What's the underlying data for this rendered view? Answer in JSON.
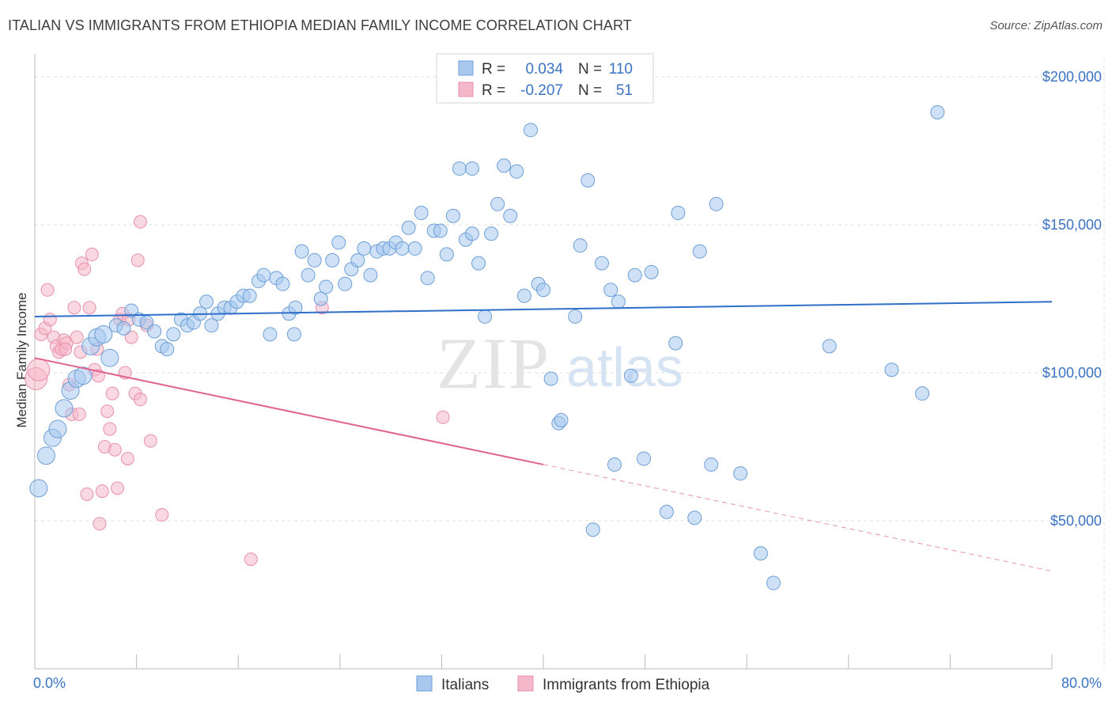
{
  "title": "ITALIAN VS IMMIGRANTS FROM ETHIOPIA MEDIAN FAMILY INCOME CORRELATION CHART",
  "source": "Source: ZipAtlas.com",
  "watermark": {
    "zip": "ZIP",
    "atlas": "atlas"
  },
  "legend_top": [
    {
      "r_label": "R =",
      "r_value": "0.034",
      "n_label": "N =",
      "n_value": "110"
    },
    {
      "r_label": "R =",
      "r_value": "-0.207",
      "n_label": "N =",
      "n_value": "51"
    }
  ],
  "colors": {
    "italians_fill": "#a8c8ee",
    "italians_stroke": "#6d9fd8",
    "italians_line": "#2f6fc9",
    "ethiopia_fill": "#f5b8cb",
    "ethiopia_stroke": "#e890ac",
    "ethiopia_line": "#e0628e",
    "accent_text": "#3b73c4",
    "grid": "#dddddd"
  },
  "chart_data": {
    "type": "scatter",
    "title": "ITALIAN VS IMMIGRANTS FROM ETHIOPIA MEDIAN FAMILY INCOME CORRELATION CHART",
    "xlabel": "",
    "ylabel": "Median Family Income",
    "xlim": [
      0,
      80
    ],
    "ylim": [
      0,
      210000
    ],
    "x_tick_labels": [
      "0.0%",
      "80.0%"
    ],
    "y_ticks": [
      {
        "value": 50000,
        "label": "$50,000"
      },
      {
        "value": 100000,
        "label": "$100,000"
      },
      {
        "value": 150000,
        "label": "$150,000"
      },
      {
        "value": 200000,
        "label": "$200,000"
      }
    ],
    "grid": "horizontal dashed",
    "legend_position": "top-center and bottom",
    "series": [
      {
        "name": "Italians",
        "r": 0.034,
        "n": 110,
        "trend": {
          "x0": 0,
          "y0": 119000,
          "x1": 80,
          "y1": 124000
        },
        "points": [
          [
            0.3,
            61000
          ],
          [
            0.9,
            72000
          ],
          [
            1.4,
            78000
          ],
          [
            1.8,
            81000
          ],
          [
            2.3,
            88000
          ],
          [
            2.8,
            94000
          ],
          [
            3.3,
            98000
          ],
          [
            3.8,
            99000
          ],
          [
            4.4,
            109000
          ],
          [
            4.9,
            112000
          ],
          [
            5.4,
            113000
          ],
          [
            5.9,
            105000
          ],
          [
            6.4,
            116000
          ],
          [
            7.0,
            115000
          ],
          [
            7.6,
            121000
          ],
          [
            8.2,
            118000
          ],
          [
            8.8,
            117000
          ],
          [
            9.4,
            114000
          ],
          [
            10.0,
            109000
          ],
          [
            10.4,
            108000
          ],
          [
            10.9,
            113000
          ],
          [
            11.5,
            118000
          ],
          [
            12.0,
            116000
          ],
          [
            12.5,
            117000
          ],
          [
            13.0,
            120000
          ],
          [
            13.5,
            124000
          ],
          [
            13.9,
            116000
          ],
          [
            14.4,
            120000
          ],
          [
            14.9,
            122000
          ],
          [
            15.4,
            122000
          ],
          [
            15.9,
            124000
          ],
          [
            16.4,
            126000
          ],
          [
            16.9,
            126000
          ],
          [
            17.6,
            131000
          ],
          [
            18.0,
            133000
          ],
          [
            18.5,
            113000
          ],
          [
            19.0,
            132000
          ],
          [
            19.5,
            130000
          ],
          [
            20.0,
            120000
          ],
          [
            20.5,
            122000
          ],
          [
            21.0,
            141000
          ],
          [
            21.5,
            133000
          ],
          [
            22.0,
            138000
          ],
          [
            22.5,
            125000
          ],
          [
            22.9,
            129000
          ],
          [
            23.4,
            138000
          ],
          [
            23.9,
            144000
          ],
          [
            24.4,
            130000
          ],
          [
            24.9,
            135000
          ],
          [
            25.4,
            138000
          ],
          [
            25.9,
            142000
          ],
          [
            26.4,
            133000
          ],
          [
            26.9,
            141000
          ],
          [
            27.4,
            142000
          ],
          [
            27.9,
            142000
          ],
          [
            28.4,
            144000
          ],
          [
            28.9,
            142000
          ],
          [
            29.4,
            149000
          ],
          [
            29.9,
            142000
          ],
          [
            30.4,
            154000
          ],
          [
            30.9,
            132000
          ],
          [
            31.4,
            148000
          ],
          [
            31.9,
            148000
          ],
          [
            32.4,
            140000
          ],
          [
            32.9,
            153000
          ],
          [
            33.4,
            169000
          ],
          [
            33.9,
            145000
          ],
          [
            34.4,
            147000
          ],
          [
            34.9,
            137000
          ],
          [
            35.4,
            119000
          ],
          [
            35.9,
            147000
          ],
          [
            36.4,
            157000
          ],
          [
            36.9,
            170000
          ],
          [
            37.4,
            153000
          ],
          [
            37.9,
            168000
          ],
          [
            38.5,
            126000
          ],
          [
            39.0,
            182000
          ],
          [
            39.6,
            130000
          ],
          [
            40.0,
            128000
          ],
          [
            40.6,
            98000
          ],
          [
            41.2,
            83000
          ],
          [
            41.4,
            84000
          ],
          [
            42.5,
            119000
          ],
          [
            42.9,
            143000
          ],
          [
            43.5,
            165000
          ],
          [
            43.9,
            47000
          ],
          [
            44.6,
            137000
          ],
          [
            45.3,
            128000
          ],
          [
            45.6,
            69000
          ],
          [
            45.9,
            124000
          ],
          [
            46.9,
            99000
          ],
          [
            47.2,
            133000
          ],
          [
            47.9,
            71000
          ],
          [
            48.5,
            134000
          ],
          [
            49.7,
            53000
          ],
          [
            50.4,
            110000
          ],
          [
            50.6,
            154000
          ],
          [
            51.9,
            51000
          ],
          [
            52.3,
            141000
          ],
          [
            53.2,
            69000
          ],
          [
            53.6,
            157000
          ],
          [
            55.5,
            66000
          ],
          [
            57.1,
            39000
          ],
          [
            58.1,
            29000
          ],
          [
            62.5,
            109000
          ],
          [
            67.4,
            101000
          ],
          [
            69.8,
            93000
          ],
          [
            71.0,
            188000
          ],
          [
            34.4,
            169000
          ],
          [
            20.4,
            113000
          ]
        ]
      },
      {
        "name": "Immigrants from Ethiopia",
        "r": -0.207,
        "n": 51,
        "trend": {
          "x0": 0,
          "y0": 105000,
          "x1": 40,
          "y1": 69000,
          "dashed_to_x": 80,
          "dashed_to_y": 33000
        },
        "points": [
          [
            0.1,
            98000
          ],
          [
            0.3,
            101000
          ],
          [
            0.5,
            113000
          ],
          [
            0.8,
            115000
          ],
          [
            1.0,
            128000
          ],
          [
            1.2,
            118000
          ],
          [
            1.5,
            112000
          ],
          [
            1.7,
            109000
          ],
          [
            1.9,
            107000
          ],
          [
            2.1,
            108000
          ],
          [
            2.3,
            111000
          ],
          [
            2.5,
            110000
          ],
          [
            2.7,
            96000
          ],
          [
            2.9,
            86000
          ],
          [
            3.1,
            122000
          ],
          [
            3.3,
            112000
          ],
          [
            3.5,
            86000
          ],
          [
            3.7,
            137000
          ],
          [
            3.9,
            135000
          ],
          [
            4.1,
            59000
          ],
          [
            4.3,
            122000
          ],
          [
            4.5,
            140000
          ],
          [
            4.7,
            101000
          ],
          [
            4.9,
            108000
          ],
          [
            5.1,
            49000
          ],
          [
            5.3,
            60000
          ],
          [
            5.5,
            75000
          ],
          [
            5.7,
            87000
          ],
          [
            5.9,
            81000
          ],
          [
            6.1,
            93000
          ],
          [
            6.3,
            74000
          ],
          [
            6.5,
            61000
          ],
          [
            6.7,
            118000
          ],
          [
            6.9,
            120000
          ],
          [
            7.1,
            100000
          ],
          [
            7.3,
            71000
          ],
          [
            7.6,
            112000
          ],
          [
            7.9,
            93000
          ],
          [
            8.1,
            138000
          ],
          [
            8.3,
            151000
          ],
          [
            8.3,
            91000
          ],
          [
            9.1,
            77000
          ],
          [
            10.0,
            52000
          ],
          [
            7.4,
            118000
          ],
          [
            8.8,
            116000
          ],
          [
            3.6,
            107000
          ],
          [
            17.0,
            37000
          ],
          [
            22.6,
            122000
          ],
          [
            32.1,
            85000
          ],
          [
            2.4,
            108000
          ],
          [
            5.0,
            99000
          ]
        ]
      }
    ]
  },
  "bottom_legend": [
    {
      "label": "Italians"
    },
    {
      "label": "Immigrants from Ethiopia"
    }
  ]
}
